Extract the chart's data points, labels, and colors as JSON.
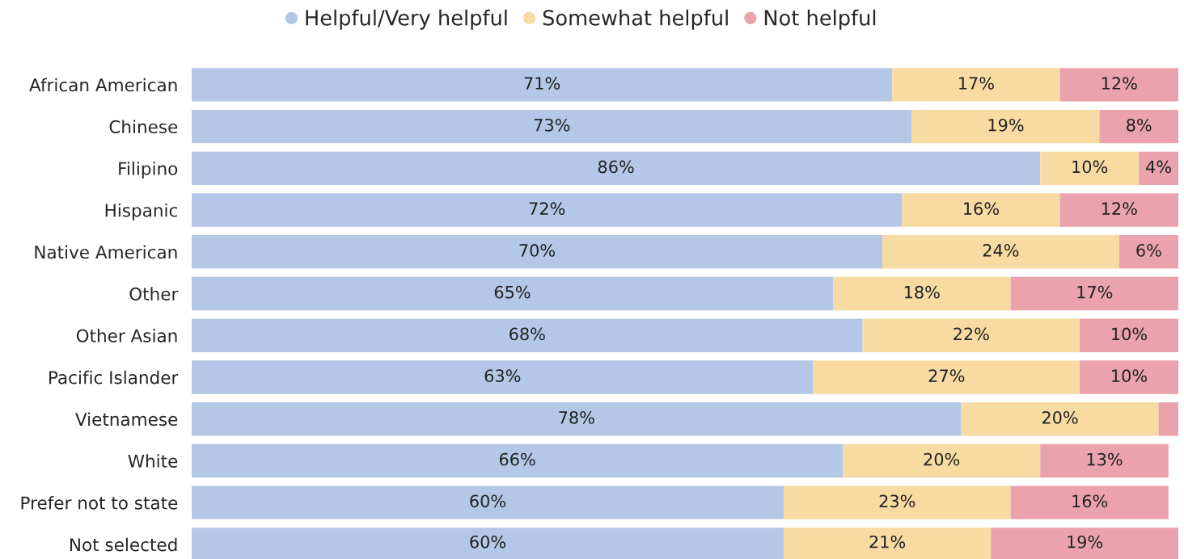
{
  "chart_data": {
    "type": "bar",
    "orientation": "horizontal",
    "stacked": true,
    "categories": [
      "African American",
      "Chinese",
      "Filipino",
      "Hispanic",
      "Native American",
      "Other",
      "Other Asian",
      "Pacific Islander",
      "Vietnamese",
      "White",
      "Prefer not to state",
      "Not selected"
    ],
    "series": [
      {
        "name": "Helpful/Very helpful",
        "color": "#b4c7e7",
        "values": [
          71,
          73,
          86,
          72,
          70,
          65,
          68,
          63,
          78,
          66,
          60,
          60
        ],
        "value_labels": [
          "71%",
          "73%",
          "86%",
          "72%",
          "70%",
          "65%",
          "68%",
          "63%",
          "78%",
          "66%",
          "60%",
          "60%"
        ]
      },
      {
        "name": "Somewhat helpful",
        "color": "#f8dba2",
        "values": [
          17,
          19,
          10,
          16,
          24,
          18,
          22,
          27,
          20,
          20,
          23,
          21
        ],
        "value_labels": [
          "17%",
          "19%",
          "10%",
          "16%",
          "24%",
          "18%",
          "22%",
          "27%",
          "20%",
          "20%",
          "23%",
          "21%"
        ]
      },
      {
        "name": "Not helpful",
        "color": "#eaa3ad",
        "values": [
          12,
          8,
          4,
          12,
          6,
          17,
          10,
          10,
          2,
          13,
          16,
          19
        ],
        "value_labels": [
          "12%",
          "8%",
          "4%",
          "12%",
          "6%",
          "17%",
          "10%",
          "10%",
          null,
          "13%",
          "16%",
          "19%"
        ]
      }
    ],
    "xlim": [
      0,
      100
    ],
    "tick_labels": "y",
    "legend": "top",
    "grid": false
  }
}
